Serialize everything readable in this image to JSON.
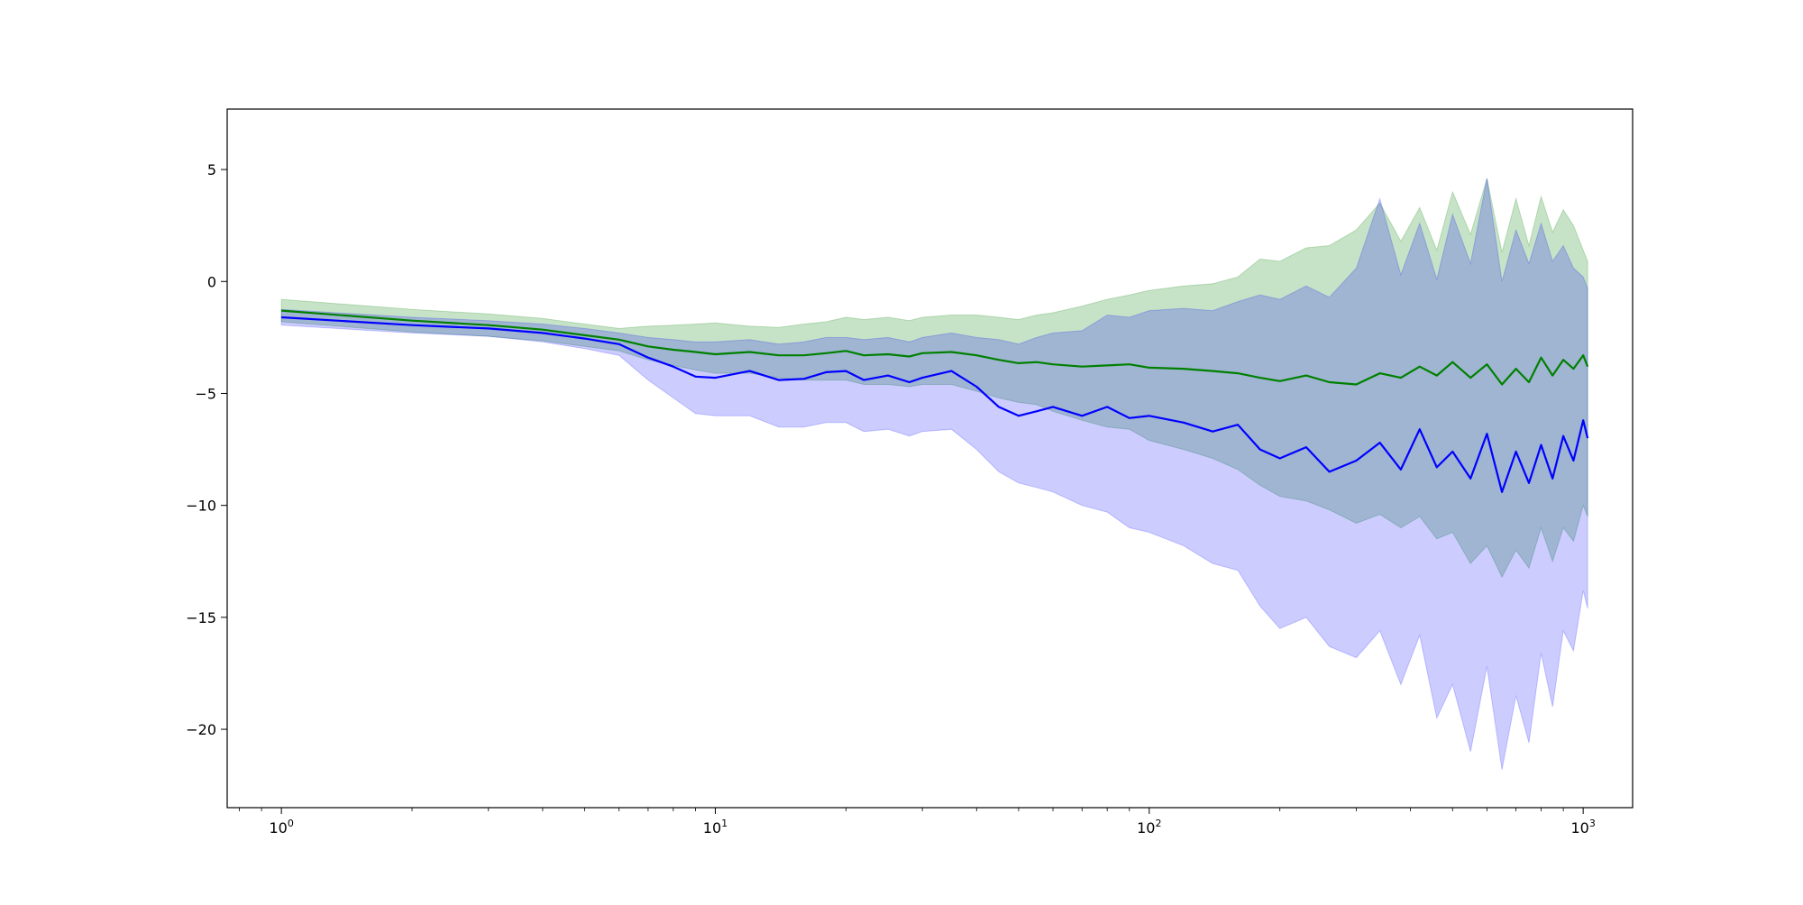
{
  "chart_data": {
    "type": "line",
    "title": "",
    "xlabel": "",
    "ylabel": "",
    "xscale": "log",
    "xlim": [
      0.75,
      1300
    ],
    "ylim": [
      -23.5,
      7.7
    ],
    "grid": false,
    "legend": "none",
    "x_ticks": [
      {
        "value": 1,
        "base": "10",
        "exp": "0"
      },
      {
        "value": 10,
        "base": "10",
        "exp": "1"
      },
      {
        "value": 100,
        "base": "10",
        "exp": "2"
      },
      {
        "value": 1000,
        "base": "10",
        "exp": "3"
      }
    ],
    "y_ticks": [
      {
        "value": 5,
        "label": "5"
      },
      {
        "value": 0,
        "label": "0"
      },
      {
        "value": -5,
        "label": "−5"
      },
      {
        "value": -10,
        "label": "−10"
      },
      {
        "value": -15,
        "label": "−15"
      },
      {
        "value": -20,
        "label": "−20"
      }
    ],
    "series": [
      {
        "color": "#008000",
        "band_color": "#008000",
        "band_opacity": 0.22,
        "x": [
          1,
          2,
          3,
          4,
          5,
          6,
          7,
          8,
          9,
          10,
          12,
          14,
          16,
          18,
          20,
          22,
          25,
          28,
          30,
          35,
          40,
          45,
          50,
          55,
          60,
          70,
          80,
          90,
          100,
          120,
          140,
          160,
          180,
          200,
          230,
          260,
          300,
          340,
          380,
          420,
          460,
          500,
          550,
          600,
          650,
          700,
          750,
          800,
          850,
          900,
          950,
          1000,
          1024
        ],
        "y": [
          -1.3,
          -1.75,
          -1.95,
          -2.15,
          -2.4,
          -2.6,
          -2.9,
          -3.05,
          -3.15,
          -3.25,
          -3.15,
          -3.3,
          -3.3,
          -3.2,
          -3.1,
          -3.3,
          -3.25,
          -3.35,
          -3.2,
          -3.15,
          -3.3,
          -3.5,
          -3.65,
          -3.6,
          -3.7,
          -3.8,
          -3.75,
          -3.7,
          -3.85,
          -3.9,
          -4.0,
          -4.1,
          -4.3,
          -4.45,
          -4.2,
          -4.5,
          -4.6,
          -4.1,
          -4.3,
          -3.8,
          -4.2,
          -3.6,
          -4.3,
          -3.7,
          -4.6,
          -3.9,
          -4.5,
          -3.4,
          -4.2,
          -3.5,
          -3.9,
          -3.3,
          -3.8
        ],
        "lower": [
          -1.8,
          -2.25,
          -2.45,
          -2.65,
          -2.9,
          -3.1,
          -3.5,
          -3.75,
          -3.95,
          -4.1,
          -4.1,
          -4.3,
          -4.4,
          -4.4,
          -4.4,
          -4.6,
          -4.6,
          -4.7,
          -4.6,
          -4.6,
          -4.9,
          -5.2,
          -5.4,
          -5.5,
          -5.8,
          -6.2,
          -6.5,
          -6.6,
          -7.1,
          -7.5,
          -7.9,
          -8.4,
          -9.1,
          -9.6,
          -9.8,
          -10.2,
          -10.8,
          -10.4,
          -11.0,
          -10.5,
          -11.5,
          -11.2,
          -12.6,
          -11.8,
          -13.2,
          -12.0,
          -12.8,
          -11.0,
          -12.5,
          -11.0,
          -11.6,
          -10.0,
          -10.5
        ],
        "upper": [
          -0.8,
          -1.25,
          -1.45,
          -1.65,
          -1.9,
          -2.1,
          -2.0,
          -1.95,
          -1.9,
          -1.85,
          -2.0,
          -2.05,
          -1.9,
          -1.8,
          -1.6,
          -1.7,
          -1.6,
          -1.75,
          -1.6,
          -1.5,
          -1.5,
          -1.6,
          -1.7,
          -1.5,
          -1.4,
          -1.1,
          -0.8,
          -0.6,
          -0.4,
          -0.2,
          -0.1,
          0.2,
          1.0,
          0.9,
          1.5,
          1.6,
          2.3,
          3.5,
          1.8,
          3.3,
          1.4,
          4.0,
          2.1,
          4.6,
          1.3,
          3.7,
          1.6,
          3.8,
          2.2,
          3.2,
          2.5,
          1.4,
          0.9
        ]
      },
      {
        "color": "#0000ff",
        "band_color": "#0000ff",
        "band_opacity": 0.2,
        "x": [
          1,
          2,
          3,
          4,
          5,
          6,
          7,
          8,
          9,
          10,
          12,
          14,
          16,
          18,
          20,
          22,
          25,
          28,
          30,
          35,
          40,
          45,
          50,
          55,
          60,
          70,
          80,
          90,
          100,
          120,
          140,
          160,
          180,
          200,
          230,
          260,
          300,
          340,
          380,
          420,
          460,
          500,
          550,
          600,
          650,
          700,
          750,
          800,
          850,
          900,
          950,
          1000,
          1024
        ],
        "y": [
          -1.6,
          -1.95,
          -2.1,
          -2.3,
          -2.55,
          -2.8,
          -3.4,
          -3.8,
          -4.25,
          -4.3,
          -4.0,
          -4.4,
          -4.35,
          -4.05,
          -4.0,
          -4.4,
          -4.2,
          -4.5,
          -4.3,
          -4.0,
          -4.7,
          -5.6,
          -6.0,
          -5.8,
          -5.6,
          -6.0,
          -5.6,
          -6.1,
          -6.0,
          -6.3,
          -6.7,
          -6.4,
          -7.5,
          -7.9,
          -7.4,
          -8.5,
          -8.0,
          -7.2,
          -8.4,
          -6.6,
          -8.3,
          -7.6,
          -8.8,
          -6.8,
          -9.4,
          -7.6,
          -9.0,
          -7.3,
          -8.8,
          -6.9,
          -8.0,
          -6.2,
          -7.0
        ],
        "lower": [
          -1.95,
          -2.3,
          -2.45,
          -2.7,
          -3.0,
          -3.3,
          -4.4,
          -5.2,
          -5.9,
          -6.0,
          -6.0,
          -6.5,
          -6.5,
          -6.3,
          -6.3,
          -6.7,
          -6.6,
          -6.9,
          -6.7,
          -6.6,
          -7.5,
          -8.5,
          -9.0,
          -9.2,
          -9.4,
          -10.0,
          -10.3,
          -11.0,
          -11.2,
          -11.8,
          -12.6,
          -12.9,
          -14.5,
          -15.5,
          -15.0,
          -16.3,
          -16.8,
          -15.6,
          -18.0,
          -15.8,
          -19.5,
          -18.0,
          -21.0,
          -17.2,
          -21.8,
          -18.5,
          -20.6,
          -16.6,
          -19.0,
          -15.6,
          -16.5,
          -13.8,
          -14.6
        ],
        "upper": [
          -1.25,
          -1.6,
          -1.75,
          -1.9,
          -2.1,
          -2.3,
          -2.5,
          -2.6,
          -2.7,
          -2.7,
          -2.6,
          -2.8,
          -2.7,
          -2.5,
          -2.5,
          -2.6,
          -2.5,
          -2.7,
          -2.5,
          -2.3,
          -2.5,
          -2.6,
          -2.8,
          -2.5,
          -2.3,
          -2.2,
          -1.5,
          -1.6,
          -1.3,
          -1.2,
          -1.3,
          -0.9,
          -0.6,
          -0.8,
          -0.2,
          -0.7,
          0.6,
          3.7,
          0.3,
          2.6,
          0.1,
          3.0,
          0.8,
          4.6,
          0.0,
          2.3,
          0.8,
          2.6,
          0.9,
          1.6,
          0.6,
          0.2,
          -0.3
        ]
      }
    ]
  }
}
